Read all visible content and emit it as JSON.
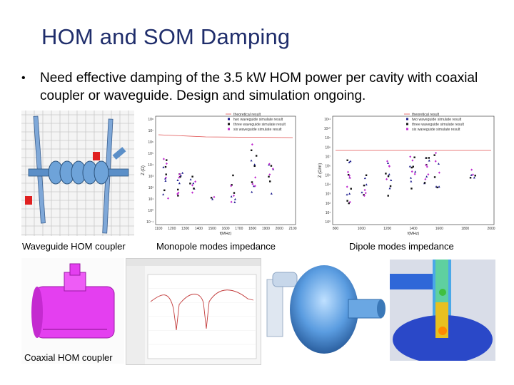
{
  "slide": {
    "title": "HOM and SOM Damping",
    "bullet": "Need effective damping of the 3.5 kW HOM power per cavity with coaxial coupler or waveguide. Design and simulation ongoing."
  },
  "captions": {
    "waveguide": "Waveguide HOM coupler",
    "monopole": "Monopole modes impedance",
    "dipole": "Dipole modes impedance",
    "coaxial": "Coaxial HOM coupler"
  },
  "monopole_legend": [
    "theoretical result",
    "two waveguide simulate result",
    "three waveguide simulate result",
    "six waveguide simulate result"
  ],
  "monopole_xlabel": "f(MHz)",
  "monopole_ylabel": "Z (Ω)",
  "monopole_xticks": [
    "1100",
    "1200",
    "1300",
    "1400",
    "1500",
    "1600",
    "1700",
    "1800",
    "1900",
    "2000",
    "2100"
  ],
  "monopole_yticks": [
    "10⁸",
    "10⁷",
    "10⁶",
    "10⁵",
    "10⁴",
    "10³",
    "10²",
    "10¹",
    "10⁰",
    "10⁻¹"
  ],
  "dipole_legend": [
    "theoretical result",
    "two waveguide simulate result",
    "three waveguide simulate result",
    "six waveguide simulate result"
  ],
  "dipole_xlabel": "f(MHz)",
  "dipole_ylabel": "Z (Ω/m)",
  "dipole_xticks": [
    "800",
    "1000",
    "1200",
    "1400",
    "1600",
    "1800",
    "2000"
  ],
  "dipole_yticks": [
    "10¹¹",
    "10¹⁰",
    "10⁹",
    "10⁸",
    "10⁷",
    "10⁶",
    "10⁵",
    "10⁴",
    "10³",
    "10²",
    "10¹",
    "10⁰"
  ],
  "colors": {
    "title": "#1f2d6b",
    "theory": "#e05050",
    "two": "#1a1a8c",
    "three": "#111111",
    "six": "#c02ad0"
  }
}
